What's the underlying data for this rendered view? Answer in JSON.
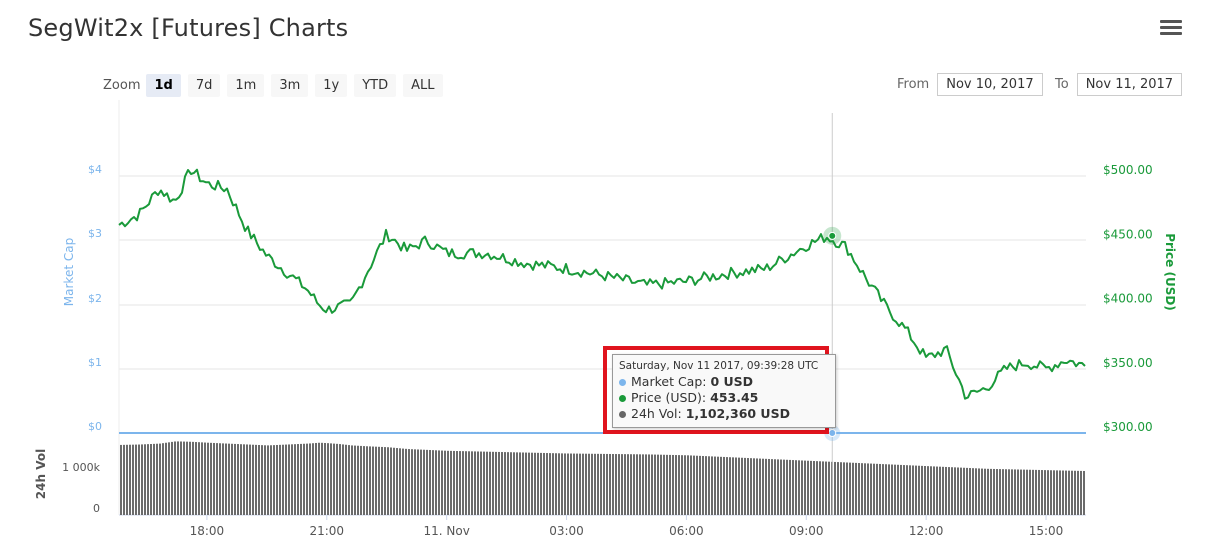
{
  "header": {
    "title": "SegWit2x [Futures] Charts",
    "menu_icon": "hamburger-menu-icon"
  },
  "zoom": {
    "label": "Zoom",
    "buttons": [
      "1d",
      "7d",
      "1m",
      "3m",
      "1y",
      "YTD",
      "ALL"
    ],
    "active": "1d"
  },
  "range": {
    "from_label": "From",
    "from_value": "Nov 10, 2017",
    "to_label": "To",
    "to_value": "Nov 11, 2017"
  },
  "tooltip": {
    "timestamp": "Saturday, Nov 11 2017, 09:39:28 UTC",
    "market_cap_label": "Market Cap:",
    "market_cap_value": "0 USD",
    "price_label": "Price (USD):",
    "price_value": "453.45",
    "vol_label": "24h Vol:",
    "vol_value": "1,102,360 USD",
    "colors": {
      "market_cap": "#7cb5ec",
      "price": "#1a9a3a",
      "vol": "#666666"
    }
  },
  "chart_data": {
    "type": "line",
    "xlabel": "",
    "x_ticks": [
      "18:00",
      "21:00",
      "11. Nov",
      "03:00",
      "06:00",
      "09:00",
      "12:00",
      "15:00"
    ],
    "left_axis": {
      "label": "Market Cap",
      "ticks": [
        "$4",
        "$3",
        "$2",
        "$1",
        "$0"
      ],
      "color": "#7cb5ec"
    },
    "right_axis": {
      "label": "Price (USD)",
      "ticks": [
        "$500.00",
        "$450.00",
        "$400.00",
        "$350.00",
        "$300.00"
      ],
      "ylim": [
        300,
        500
      ],
      "color": "#1a9a3a"
    },
    "volume_axis": {
      "label": "24h Vol",
      "ticks": [
        "1 000k",
        "0"
      ]
    },
    "x_hours": [
      15.8,
      16.3,
      16.8,
      17.2,
      17.6,
      18.0,
      18.5,
      19.0,
      19.5,
      20.0,
      20.5,
      20.8,
      21.0,
      21.3,
      21.6,
      22.0,
      22.5,
      23.0,
      23.5,
      24.0,
      25.0,
      26.0,
      27.0,
      28.0,
      29.0,
      30.0,
      31.0,
      32.0,
      33.0,
      33.5,
      34.0,
      34.5,
      35.0,
      35.5,
      36.0,
      36.5,
      37.0,
      37.5,
      38.0,
      38.5,
      39.0,
      39.5,
      40.0
    ],
    "series": [
      {
        "name": "Price (USD)",
        "color": "#1a9a3a",
        "values": [
          462,
          470,
          490,
          480,
          505,
          494,
          490,
          458,
          438,
          425,
          412,
          400,
          396,
          398,
          400,
          425,
          455,
          442,
          450,
          440,
          440,
          432,
          428,
          422,
          415,
          418,
          424,
          428,
          446,
          453,
          445,
          420,
          398,
          380,
          358,
          365,
          328,
          335,
          350,
          355,
          350,
          357,
          352
        ]
      },
      {
        "name": "Market Cap",
        "color": "#7cb5ec",
        "values": [
          0
        ]
      },
      {
        "name": "24h Vol",
        "color": "#666666",
        "unit": "k",
        "values": [
          1490,
          1500,
          1520,
          1570,
          1560,
          1540,
          1520,
          1500,
          1480,
          1500,
          1520,
          1540,
          1530,
          1510,
          1480,
          1460,
          1440,
          1400,
          1380,
          1360,
          1340,
          1320,
          1300,
          1290,
          1280,
          1260,
          1220,
          1180,
          1140,
          1120,
          1100,
          1080,
          1060,
          1040,
          1020,
          1000,
          980,
          960,
          950,
          940,
          930,
          920,
          910
        ]
      }
    ],
    "crosshair_hour": 33.65,
    "grid": true
  }
}
